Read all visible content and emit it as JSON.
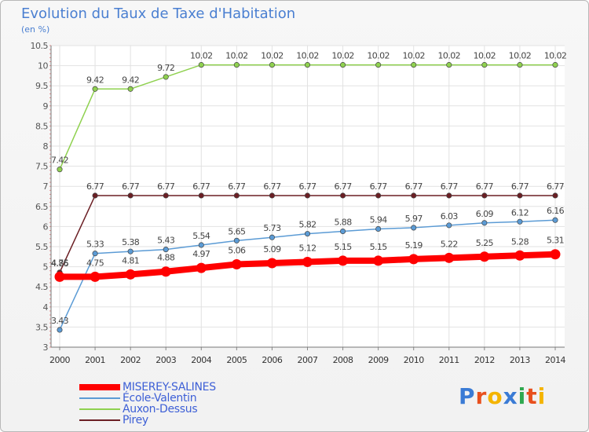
{
  "header": {
    "title": "Evolution du Taux de Taxe d'Habitation",
    "subtitle": "(en %)"
  },
  "logo": {
    "text": "Proxiti",
    "letters": [
      "P",
      "r",
      "o",
      "x",
      "i",
      "t",
      "i"
    ],
    "colors": [
      "#3a7bd5",
      "#e8501e",
      "#f4b400",
      "#3a7bd5",
      "#2fa84f",
      "#e8501e",
      "#f4b400"
    ]
  },
  "chart_data": {
    "type": "line",
    "title": "Evolution du Taux de Taxe d'Habitation",
    "ylabel": "(en %)",
    "xlabel": "",
    "ylim": [
      3,
      10.5
    ],
    "yticks": [
      "3",
      "3.5",
      "4",
      "4.5",
      "5",
      "5.5",
      "6",
      "6.5",
      "7",
      "7.5",
      "8",
      "8.5",
      "9",
      "9.5",
      "10",
      "10.5"
    ],
    "categories": [
      "2000",
      "2001",
      "2002",
      "2003",
      "2004",
      "2005",
      "2006",
      "2007",
      "2008",
      "2009",
      "2010",
      "2011",
      "2012",
      "2013",
      "2014"
    ],
    "grid": true,
    "legend_position": "bottom-left",
    "series": [
      {
        "name": "Pirey",
        "color": "#6b1f24",
        "values": [
          4.86,
          6.77,
          6.77,
          6.77,
          6.77,
          6.77,
          6.77,
          6.77,
          6.77,
          6.77,
          6.77,
          6.77,
          6.77,
          6.77,
          6.77
        ],
        "labels": [
          "4.86",
          "6.77",
          "6.77",
          "6.77",
          "6.77",
          "6.77",
          "6.77",
          "6.77",
          "6.77",
          "6.77",
          "6.77",
          "6.77",
          "6.77",
          "6.77",
          "6.77"
        ]
      },
      {
        "name": "Auxon-Dessus",
        "color": "#8fd14f",
        "values": [
          7.42,
          9.42,
          9.42,
          9.72,
          10.02,
          10.02,
          10.02,
          10.02,
          10.02,
          10.02,
          10.02,
          10.02,
          10.02,
          10.02,
          10.02
        ],
        "labels": [
          "7.42",
          "9.42",
          "9.42",
          "9.72",
          "10.02",
          "10.02",
          "10.02",
          "10.02",
          "10.02",
          "10.02",
          "10.02",
          "10.02",
          "10.02",
          "10.02",
          "10.02"
        ]
      },
      {
        "name": "École-Valentin",
        "color": "#5b9bd5",
        "values": [
          3.43,
          5.33,
          5.38,
          5.43,
          5.54,
          5.65,
          5.73,
          5.82,
          5.88,
          5.94,
          5.97,
          6.03,
          6.09,
          6.12,
          6.16
        ],
        "labels": [
          "3.43",
          "5.33",
          "5.38",
          "5.43",
          "5.54",
          "5.65",
          "5.73",
          "5.82",
          "5.88",
          "5.94",
          "5.97",
          "6.03",
          "6.09",
          "6.12",
          "6.16"
        ]
      },
      {
        "name": "MISEREY-SALINES",
        "color": "#ff0000",
        "values": [
          4.75,
          4.75,
          4.81,
          4.88,
          4.97,
          5.06,
          5.09,
          5.12,
          5.15,
          5.15,
          5.19,
          5.22,
          5.25,
          5.28,
          5.31
        ],
        "labels": [
          "4.75",
          "4.75",
          "4.81",
          "4.88",
          "4.97",
          "5.06",
          "5.09",
          "5.12",
          "5.15",
          "5.15",
          "5.19",
          "5.22",
          "5.25",
          "5.28",
          "5.31"
        ]
      }
    ],
    "legend_order": [
      "MISEREY-SALINES",
      "École-Valentin",
      "Auxon-Dessus",
      "Pirey"
    ]
  }
}
